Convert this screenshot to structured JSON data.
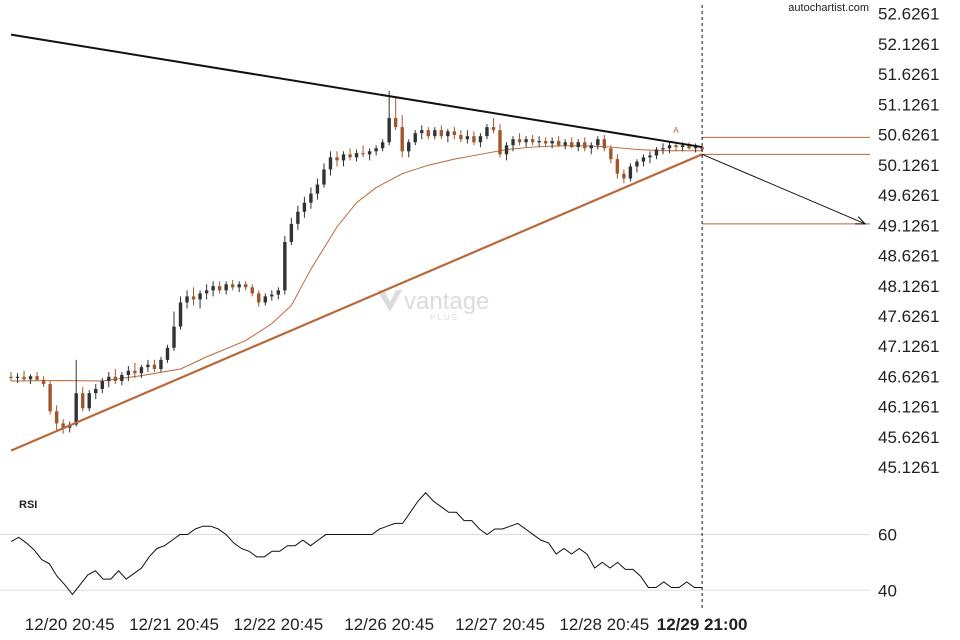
{
  "brand": {
    "source": "autochartist.com",
    "watermark": "vantage",
    "watermark_sub": "PLUS"
  },
  "chart_data": [
    {
      "type": "candlestick",
      "panel": "price",
      "y_ticks": [
        "52.6261",
        "52.1261",
        "51.6261",
        "51.1261",
        "50.6261",
        "50.1261",
        "49.6261",
        "49.1261",
        "48.6261",
        "48.1261",
        "47.6261",
        "47.1261",
        "46.6261",
        "46.1261",
        "45.6261",
        "45.1261"
      ],
      "ylim": [
        44.93,
        52.72
      ],
      "x_tick_labels": [
        "12/20 20:45",
        "12/21 20:45",
        "12/22 20:45",
        "12/26 20:45",
        "12/27 20:45",
        "12/28 20:45",
        "12/29 21:00"
      ],
      "x_tick_bar_index": [
        9,
        25,
        41,
        58,
        75,
        91,
        106
      ],
      "highlight_label": "12/29 21:00",
      "bar_count": 107,
      "candle_colors": {
        "up": "#333333",
        "down": "#a0572b"
      },
      "candles": [
        [
          46.62,
          46.7,
          46.55,
          46.6
        ],
        [
          46.6,
          46.68,
          46.52,
          46.62
        ],
        [
          46.62,
          46.72,
          46.55,
          46.58
        ],
        [
          46.58,
          46.66,
          46.5,
          46.63
        ],
        [
          46.63,
          46.7,
          46.55,
          46.57
        ],
        [
          46.57,
          46.63,
          46.45,
          46.5
        ],
        [
          46.5,
          46.55,
          46.0,
          46.05
        ],
        [
          46.05,
          46.15,
          45.72,
          45.85
        ],
        [
          45.85,
          45.92,
          45.68,
          45.78
        ],
        [
          45.78,
          45.88,
          45.7,
          45.83
        ],
        [
          45.83,
          46.9,
          45.8,
          46.35
        ],
        [
          46.35,
          46.45,
          46.05,
          46.1
        ],
        [
          46.1,
          46.4,
          46.05,
          46.35
        ],
        [
          46.35,
          46.5,
          46.25,
          46.42
        ],
        [
          46.42,
          46.6,
          46.35,
          46.55
        ],
        [
          46.55,
          46.7,
          46.45,
          46.62
        ],
        [
          46.62,
          46.75,
          46.5,
          46.55
        ],
        [
          46.55,
          46.7,
          46.48,
          46.65
        ],
        [
          46.65,
          46.8,
          46.55,
          46.72
        ],
        [
          46.72,
          46.85,
          46.6,
          46.68
        ],
        [
          46.68,
          46.82,
          46.6,
          46.78
        ],
        [
          46.78,
          46.9,
          46.7,
          46.82
        ],
        [
          46.82,
          46.9,
          46.7,
          46.75
        ],
        [
          46.75,
          46.95,
          46.7,
          46.9
        ],
        [
          46.9,
          47.15,
          46.85,
          47.1
        ],
        [
          47.1,
          47.7,
          47.05,
          47.45
        ],
        [
          47.45,
          47.95,
          47.4,
          47.85
        ],
        [
          47.85,
          48.05,
          47.75,
          47.95
        ],
        [
          47.95,
          48.1,
          47.8,
          47.9
        ],
        [
          47.9,
          48.05,
          47.75,
          48.0
        ],
        [
          48.0,
          48.15,
          47.9,
          48.05
        ],
        [
          48.05,
          48.2,
          47.95,
          48.12
        ],
        [
          48.12,
          48.2,
          48.0,
          48.05
        ],
        [
          48.05,
          48.2,
          47.98,
          48.15
        ],
        [
          48.15,
          48.22,
          48.05,
          48.1
        ],
        [
          48.1,
          48.2,
          48.02,
          48.15
        ],
        [
          48.15,
          48.2,
          48.05,
          48.1
        ],
        [
          48.1,
          48.15,
          47.95,
          48.0
        ],
        [
          48.0,
          48.05,
          47.78,
          47.85
        ],
        [
          47.85,
          48.0,
          47.8,
          47.95
        ],
        [
          47.95,
          48.05,
          47.88,
          47.98
        ],
        [
          47.98,
          48.1,
          47.9,
          48.05
        ],
        [
          48.05,
          48.95,
          47.98,
          48.85
        ],
        [
          48.85,
          49.25,
          48.8,
          49.15
        ],
        [
          49.15,
          49.45,
          49.05,
          49.35
        ],
        [
          49.35,
          49.6,
          49.25,
          49.5
        ],
        [
          49.5,
          49.75,
          49.4,
          49.65
        ],
        [
          49.65,
          49.9,
          49.55,
          49.8
        ],
        [
          49.8,
          50.15,
          49.75,
          50.05
        ],
        [
          50.05,
          50.35,
          49.95,
          50.25
        ],
        [
          50.25,
          50.35,
          50.1,
          50.2
        ],
        [
          50.2,
          50.35,
          50.1,
          50.3
        ],
        [
          50.3,
          50.4,
          50.2,
          50.25
        ],
        [
          50.25,
          50.38,
          50.18,
          50.32
        ],
        [
          50.32,
          50.45,
          50.25,
          50.3
        ],
        [
          50.3,
          50.4,
          50.2,
          50.35
        ],
        [
          50.35,
          50.45,
          50.28,
          50.4
        ],
        [
          50.4,
          50.55,
          50.35,
          50.5
        ],
        [
          50.5,
          51.35,
          50.45,
          50.9
        ],
        [
          50.9,
          51.25,
          50.7,
          50.75
        ],
        [
          50.75,
          50.95,
          50.25,
          50.35
        ],
        [
          50.35,
          50.55,
          50.25,
          50.5
        ],
        [
          50.5,
          50.7,
          50.45,
          50.65
        ],
        [
          50.65,
          50.78,
          50.55,
          50.7
        ],
        [
          50.7,
          50.75,
          50.55,
          50.6
        ],
        [
          50.6,
          50.75,
          50.55,
          50.7
        ],
        [
          50.7,
          50.78,
          50.55,
          50.6
        ],
        [
          50.6,
          50.72,
          50.5,
          50.68
        ],
        [
          50.68,
          50.75,
          50.55,
          50.62
        ],
        [
          50.62,
          50.7,
          50.5,
          50.55
        ],
        [
          50.55,
          50.7,
          50.48,
          50.6
        ],
        [
          50.6,
          50.68,
          50.45,
          50.5
        ],
        [
          50.5,
          50.65,
          50.42,
          50.6
        ],
        [
          50.6,
          50.8,
          50.55,
          50.75
        ],
        [
          50.75,
          50.9,
          50.65,
          50.7
        ],
        [
          50.7,
          50.8,
          50.25,
          50.3
        ],
        [
          50.3,
          50.5,
          50.2,
          50.45
        ],
        [
          50.45,
          50.6,
          50.35,
          50.55
        ],
        [
          50.55,
          50.65,
          50.45,
          50.5
        ],
        [
          50.5,
          50.6,
          50.42,
          50.55
        ],
        [
          50.55,
          50.62,
          50.45,
          50.5
        ],
        [
          50.5,
          50.6,
          50.42,
          50.52
        ],
        [
          50.52,
          50.58,
          50.42,
          50.48
        ],
        [
          50.48,
          50.58,
          50.4,
          50.52
        ],
        [
          50.52,
          50.6,
          50.42,
          50.45
        ],
        [
          50.45,
          50.55,
          50.38,
          50.5
        ],
        [
          50.5,
          50.58,
          50.4,
          50.42
        ],
        [
          50.42,
          50.55,
          50.35,
          50.5
        ],
        [
          50.5,
          50.58,
          50.35,
          50.4
        ],
        [
          50.4,
          50.5,
          50.3,
          50.45
        ],
        [
          50.45,
          50.6,
          50.38,
          50.55
        ],
        [
          50.55,
          50.62,
          50.35,
          50.4
        ],
        [
          50.4,
          50.45,
          50.15,
          50.22
        ],
        [
          50.22,
          50.3,
          49.9,
          49.98
        ],
        [
          49.98,
          50.05,
          49.82,
          49.9
        ],
        [
          49.9,
          50.15,
          49.85,
          50.1
        ],
        [
          50.1,
          50.22,
          50.0,
          50.18
        ],
        [
          50.18,
          50.3,
          50.1,
          50.25
        ],
        [
          50.25,
          50.35,
          50.15,
          50.28
        ],
        [
          50.28,
          50.42,
          50.22,
          50.38
        ],
        [
          50.38,
          50.48,
          50.3,
          50.4
        ],
        [
          50.4,
          50.52,
          50.32,
          50.45
        ],
        [
          50.45,
          50.5,
          50.35,
          50.42
        ],
        [
          50.42,
          50.5,
          50.35,
          50.45
        ],
        [
          50.45,
          50.5,
          50.38,
          50.4
        ],
        [
          50.4,
          50.48,
          50.33,
          50.42
        ],
        [
          50.42,
          50.45,
          50.35,
          50.38
        ]
      ],
      "moving_average": {
        "color": "#b8683a",
        "values": [
          [
            0,
            46.55
          ],
          [
            8,
            46.56
          ],
          [
            14,
            46.55
          ],
          [
            20,
            46.64
          ],
          [
            26,
            46.75
          ],
          [
            30,
            46.95
          ],
          [
            36,
            47.22
          ],
          [
            40,
            47.5
          ],
          [
            43,
            47.8
          ],
          [
            46,
            48.4
          ],
          [
            50,
            49.1
          ],
          [
            53,
            49.5
          ],
          [
            56,
            49.75
          ],
          [
            60,
            49.98
          ],
          [
            64,
            50.12
          ],
          [
            68,
            50.22
          ],
          [
            72,
            50.3
          ],
          [
            76,
            50.38
          ],
          [
            80,
            50.42
          ],
          [
            84,
            50.44
          ],
          [
            88,
            50.44
          ],
          [
            92,
            50.42
          ],
          [
            96,
            50.38
          ],
          [
            100,
            50.36
          ],
          [
            104,
            50.36
          ],
          [
            106,
            50.36
          ]
        ]
      },
      "pattern": {
        "type": "triangle",
        "resistance_line": {
          "from": [
            0,
            52.28
          ],
          "to": [
            106,
            50.42
          ],
          "color": "#111111"
        },
        "support_line": {
          "from": [
            0,
            45.4
          ],
          "to": [
            106,
            50.3
          ],
          "color": "#b8683a"
        },
        "projection_arrow": {
          "from": [
            106,
            50.3
          ],
          "to": [
            131,
            49.15
          ],
          "color": "#111111"
        },
        "levels": [
          {
            "value": 50.58,
            "from_bar": 106,
            "color": "#b8683a"
          },
          {
            "value": 50.3,
            "from_bar": 106,
            "color": "#b8683a"
          },
          {
            "value": 49.15,
            "from_bar": 106,
            "color": "#b8683a"
          }
        ],
        "breakout_marker": {
          "bar": 102,
          "value": 50.62,
          "label": "A"
        },
        "current_bar": 106
      }
    },
    {
      "type": "line",
      "panel": "indicator",
      "title": "RSI",
      "y_ticks": [
        "60",
        "40"
      ],
      "ylim": [
        36.5,
        76
      ],
      "levels": [
        60,
        40
      ],
      "values": [
        [
          0,
          57.5
        ],
        [
          2,
          59
        ],
        [
          4,
          57
        ],
        [
          6,
          54.5
        ],
        [
          8,
          51
        ],
        [
          10,
          49.5
        ],
        [
          12,
          45
        ],
        [
          14,
          42
        ],
        [
          16,
          38.5
        ],
        [
          18,
          42
        ],
        [
          20,
          45.5
        ],
        [
          22,
          47
        ],
        [
          24,
          44
        ],
        [
          26,
          44
        ],
        [
          28,
          47
        ],
        [
          30,
          44
        ],
        [
          32,
          46
        ],
        [
          34,
          48
        ],
        [
          36,
          52
        ],
        [
          38,
          55
        ],
        [
          40,
          56
        ],
        [
          42,
          58
        ],
        [
          44,
          60
        ],
        [
          46,
          60
        ],
        [
          48,
          62
        ],
        [
          50,
          63
        ],
        [
          52,
          63
        ],
        [
          54,
          62
        ],
        [
          56,
          60
        ],
        [
          58,
          57
        ],
        [
          60,
          55
        ],
        [
          62,
          54
        ],
        [
          64,
          52
        ],
        [
          66,
          52
        ],
        [
          68,
          54
        ],
        [
          70,
          54
        ],
        [
          72,
          56
        ],
        [
          74,
          56
        ],
        [
          76,
          58
        ],
        [
          78,
          56
        ],
        [
          80,
          58
        ],
        [
          82,
          60
        ],
        [
          84,
          60
        ],
        [
          86,
          60
        ],
        [
          88,
          60
        ],
        [
          90,
          60
        ],
        [
          92,
          60
        ],
        [
          94,
          60
        ],
        [
          96,
          62
        ],
        [
          98,
          63
        ],
        [
          100,
          64
        ],
        [
          102,
          64
        ],
        [
          104,
          68
        ],
        [
          106,
          72
        ],
        [
          108,
          75
        ],
        [
          110,
          72
        ],
        [
          112,
          70
        ],
        [
          114,
          68
        ],
        [
          116,
          68
        ],
        [
          118,
          65
        ],
        [
          120,
          65
        ],
        [
          122,
          62
        ],
        [
          124,
          60
        ],
        [
          126,
          62
        ],
        [
          128,
          62
        ],
        [
          130,
          63
        ],
        [
          132,
          64
        ],
        [
          134,
          62
        ],
        [
          136,
          60
        ],
        [
          138,
          58
        ],
        [
          140,
          57
        ],
        [
          142,
          53
        ],
        [
          144,
          55
        ],
        [
          146,
          53
        ],
        [
          148,
          55
        ],
        [
          150,
          53
        ],
        [
          152,
          48
        ],
        [
          154,
          50
        ],
        [
          156,
          48
        ],
        [
          158,
          50
        ],
        [
          160,
          47.5
        ],
        [
          162,
          47.5
        ],
        [
          164,
          45
        ],
        [
          166,
          41
        ],
        [
          168,
          41
        ],
        [
          170,
          43
        ],
        [
          172,
          41
        ],
        [
          174,
          41
        ],
        [
          176,
          43
        ],
        [
          178,
          41
        ],
        [
          180,
          41
        ]
      ],
      "x_domain": [
        0,
        180
      ]
    }
  ]
}
